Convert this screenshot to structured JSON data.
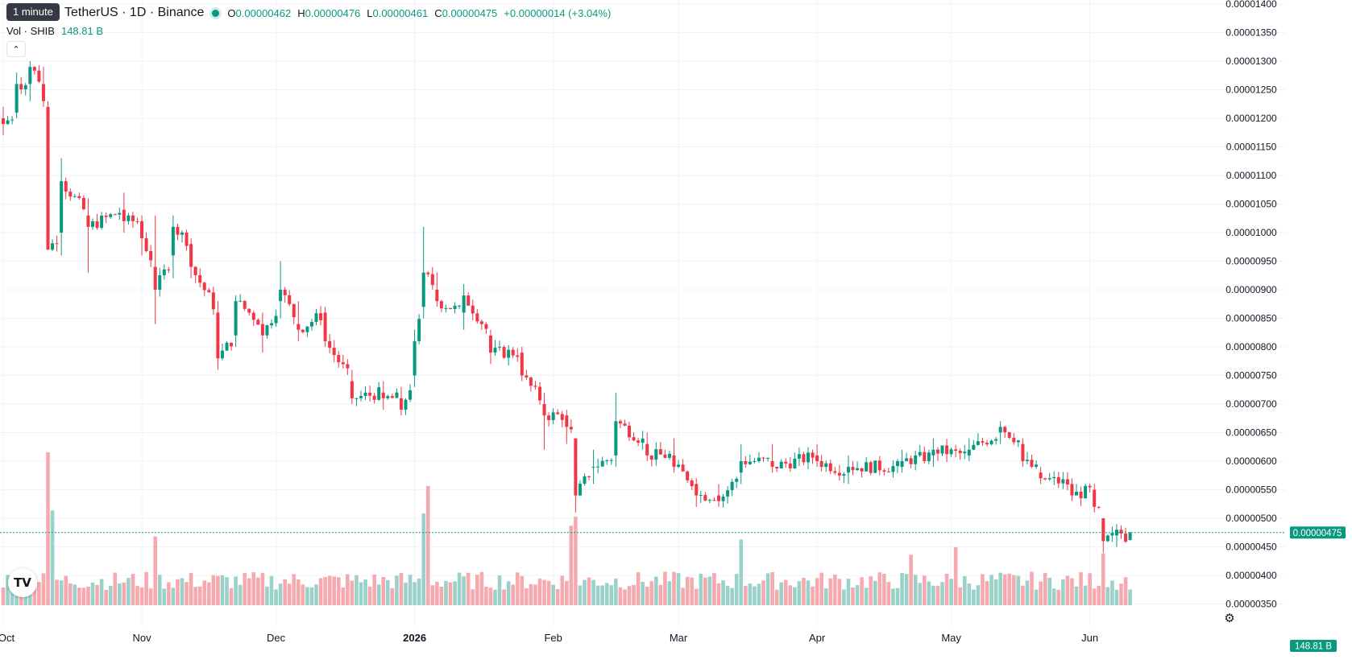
{
  "header": {
    "symbol": "TetherUS · 1D · Binance",
    "tooltip": "1 minute",
    "market_status_color": "#089981",
    "ohlc": {
      "o_label": "O",
      "o": "0.00000462",
      "h_label": "H",
      "h": "0.00000476",
      "l_label": "L",
      "l": "0.00000461",
      "c_label": "C",
      "c": "0.00000475",
      "change": "+0.00000014 (+3.04%)"
    },
    "volume_label": "Vol · SHIB",
    "volume_value": "148.81 B",
    "collapse_icon": "chevron-up-icon"
  },
  "logo_text": "TV",
  "settings_icon": "gear-icon",
  "colors": {
    "up": "#089981",
    "down": "#f23645",
    "vol_up": "#9ad2c9",
    "vol_down": "#f6a9ae",
    "grid": "#f0f3fa"
  },
  "chart_data": {
    "type": "candlestick",
    "y_range": [
      3.5e-06,
      1.4e-05
    ],
    "y_ticks": [
      "0.00001400",
      "0.00001350",
      "0.00001300",
      "0.00001250",
      "0.00001200",
      "0.00001150",
      "0.00001100",
      "0.00001050",
      "0.00001000",
      "0.00000950",
      "0.00000900",
      "0.00000850",
      "0.00000800",
      "0.00000750",
      "0.00000700",
      "0.00000650",
      "0.00000600",
      "0.00000550",
      "0.00000500",
      "0.00000450",
      "0.00000400",
      "0.00000350"
    ],
    "x_ticks": [
      "Oct",
      "Nov",
      "Dec",
      "2026",
      "Feb",
      "Mar",
      "Apr",
      "May",
      "Jun"
    ],
    "last_price": "0.00000475",
    "last_volume": "148.81 B",
    "anchors": [
      [
        "2025-10-01",
        12.0,
        12.2,
        11.7,
        11.9
      ],
      [
        "2025-10-04",
        12.1,
        12.8,
        12.0,
        12.6
      ],
      [
        "2025-10-07",
        12.6,
        13.0,
        12.3,
        12.9
      ],
      [
        "2025-10-10",
        12.6,
        12.9,
        12.2,
        12.3
      ],
      [
        "2025-10-11",
        12.2,
        12.3,
        9.7,
        9.7
      ],
      [
        "2025-10-14",
        10.0,
        11.3,
        9.6,
        10.9
      ],
      [
        "2025-10-20",
        10.3,
        10.6,
        9.3,
        10.1
      ],
      [
        "2025-10-28",
        10.4,
        10.7,
        10.0,
        10.2
      ],
      [
        "2025-11-01",
        10.2,
        10.3,
        9.6,
        9.9
      ],
      [
        "2025-11-04",
        9.4,
        10.3,
        8.4,
        9.0
      ],
      [
        "2025-11-08",
        9.6,
        10.3,
        9.2,
        10.1
      ],
      [
        "2025-11-12",
        9.8,
        9.9,
        9.2,
        9.4
      ],
      [
        "2025-11-18",
        8.6,
        8.8,
        7.6,
        7.8
      ],
      [
        "2025-11-22",
        8.2,
        8.9,
        8.0,
        8.8
      ],
      [
        "2025-11-28",
        8.4,
        8.6,
        7.9,
        8.2
      ],
      [
        "2025-12-02",
        8.8,
        9.5,
        8.5,
        9.0
      ],
      [
        "2025-12-06",
        8.4,
        8.8,
        8.1,
        8.3
      ],
      [
        "2025-12-12",
        8.6,
        8.7,
        8.0,
        8.1
      ],
      [
        "2025-12-18",
        7.4,
        7.6,
        7.0,
        7.1
      ],
      [
        "2025-12-25",
        7.2,
        7.4,
        6.9,
        7.1
      ],
      [
        "2025-12-29",
        7.1,
        7.3,
        6.8,
        6.9
      ],
      [
        "2026-01-01",
        7.5,
        8.3,
        7.3,
        8.1
      ],
      [
        "2026-01-03",
        8.7,
        10.1,
        8.5,
        9.3
      ],
      [
        "2026-01-06",
        9.0,
        9.3,
        8.7,
        8.8
      ],
      [
        "2026-01-12",
        8.6,
        9.1,
        8.3,
        8.9
      ],
      [
        "2026-01-18",
        8.2,
        8.3,
        7.7,
        7.9
      ],
      [
        "2026-01-25",
        7.9,
        8.0,
        7.4,
        7.5
      ],
      [
        "2026-01-30",
        7.0,
        7.2,
        6.2,
        6.8
      ],
      [
        "2026-02-04",
        6.8,
        6.9,
        6.3,
        6.6
      ],
      [
        "2026-02-06",
        6.4,
        6.4,
        5.1,
        5.4
      ],
      [
        "2026-02-10",
        5.9,
        6.2,
        5.6,
        5.9
      ],
      [
        "2026-02-15",
        6.1,
        7.2,
        5.9,
        6.7
      ],
      [
        "2026-02-22",
        6.3,
        6.5,
        6.0,
        6.1
      ],
      [
        "2026-02-28",
        6.1,
        6.4,
        5.8,
        5.9
      ],
      [
        "2026-03-05",
        5.6,
        5.7,
        5.2,
        5.4
      ],
      [
        "2026-03-10",
        5.4,
        5.6,
        5.2,
        5.3
      ],
      [
        "2026-03-15",
        5.8,
        6.3,
        5.6,
        6.0
      ],
      [
        "2026-03-22",
        6.0,
        6.3,
        5.8,
        5.9
      ],
      [
        "2026-04-01",
        6.1,
        6.3,
        5.9,
        6.0
      ],
      [
        "2026-04-08",
        5.8,
        6.1,
        5.6,
        5.9
      ],
      [
        "2026-04-20",
        5.9,
        6.2,
        5.8,
        6.0
      ],
      [
        "2026-04-27",
        6.1,
        6.4,
        5.9,
        6.2
      ],
      [
        "2026-05-05",
        6.1,
        6.4,
        6.0,
        6.2
      ],
      [
        "2026-05-12",
        6.5,
        6.7,
        6.3,
        6.6
      ],
      [
        "2026-05-17",
        6.3,
        6.4,
        5.9,
        6.0
      ],
      [
        "2026-05-21",
        5.8,
        5.9,
        5.6,
        5.7
      ],
      [
        "2026-05-28",
        5.6,
        5.7,
        5.3,
        5.4
      ],
      [
        "2026-06-02",
        5.5,
        5.6,
        5.1,
        5.2
      ],
      [
        "2026-06-04",
        5.0,
        5.0,
        4.4,
        4.6
      ],
      [
        "2026-06-07",
        4.7,
        4.9,
        4.5,
        4.8
      ],
      [
        "2026-06-10",
        4.62,
        4.76,
        4.61,
        4.75
      ]
    ],
    "volume_spikes": {
      "2025-10-11": 1.0,
      "2025-10-12": 0.62,
      "2026-01-04": 0.78,
      "2026-01-03": 0.6,
      "2026-02-06": 0.58,
      "2026-02-05": 0.52,
      "2025-11-04": 0.45,
      "2026-03-15": 0.43,
      "2026-04-22": 0.33,
      "2026-05-02": 0.38,
      "2026-06-04": 0.34
    }
  }
}
